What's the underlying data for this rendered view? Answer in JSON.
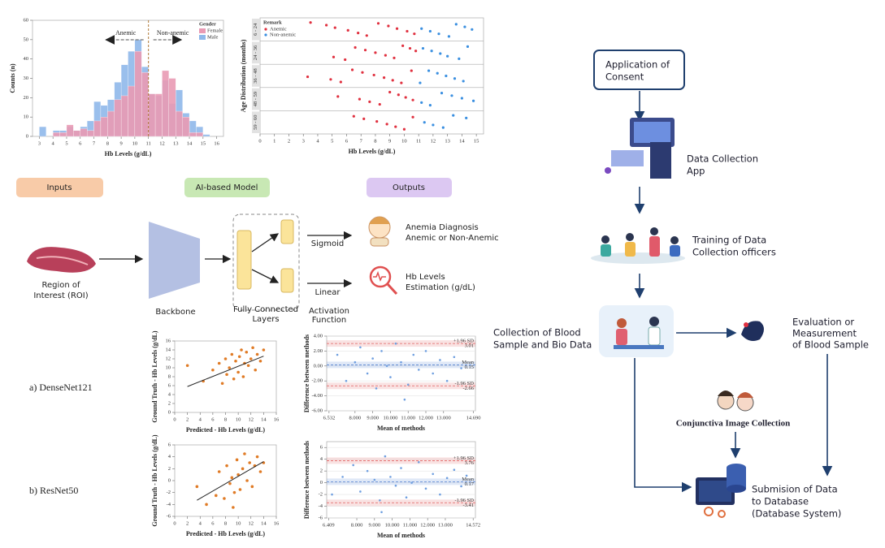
{
  "chart_data": [
    {
      "type": "histogram",
      "x_label": "Hb Levels (g/dL)",
      "y_label": "Counts (n)",
      "bins": [
        3,
        3.5,
        4,
        4.5,
        5,
        5.5,
        6,
        6.5,
        7,
        7.5,
        8,
        8.5,
        9,
        9.5,
        10,
        10.5,
        11,
        11.5,
        12,
        12.5,
        13,
        13.5,
        14,
        14.5,
        15,
        15.5
      ],
      "series": [
        {
          "name": "Male",
          "color": "#8fb8ea",
          "values": [
            5,
            0,
            3,
            3,
            5,
            3,
            5,
            8,
            18,
            16,
            19,
            28,
            37,
            44,
            50,
            36,
            22,
            21,
            29,
            17,
            24,
            12,
            8,
            5,
            1
          ]
        },
        {
          "name": "Female",
          "color": "#e99ab4",
          "values": [
            0,
            0,
            2,
            2,
            6,
            3,
            4,
            3,
            8,
            10,
            13,
            19,
            21,
            26,
            44,
            33,
            22,
            22,
            34,
            30,
            13,
            10,
            2,
            2,
            0
          ]
        }
      ],
      "legend_title": "Gender",
      "threshold": 11,
      "annotations": [
        "Anemic",
        "Non-anemic"
      ],
      "xlim": [
        2.5,
        16.5
      ],
      "xticks": [
        3,
        4,
        5,
        6,
        7,
        8,
        9,
        10,
        11,
        12,
        13,
        14,
        15,
        16
      ],
      "ylim": [
        0,
        60
      ],
      "yticks": [
        0,
        10,
        20,
        30,
        40,
        50,
        60
      ]
    },
    {
      "type": "strip",
      "x_label": "Hb Levels (g/dL)",
      "y_label": "Age Distribution (months)",
      "legend_title": "Remark",
      "categories": [
        "6 - 24",
        "24 - 36",
        "36 - 48",
        "48 - 59",
        "59 - 60"
      ],
      "series": [
        {
          "name": "Anemic",
          "color": "#e0303f",
          "values": [
            [
              3.5,
              4.6,
              5.2,
              6.1,
              6.8,
              7.4,
              8.2,
              8.9,
              9.5,
              10.2,
              10.7
            ],
            [
              5.1,
              5.9,
              6.6,
              7.3,
              8.0,
              8.7,
              9.3,
              9.9,
              10.4,
              10.8
            ],
            [
              3.3,
              4.9,
              5.6,
              6.4,
              7.1,
              7.9,
              8.6,
              9.2,
              9.8,
              10.5
            ],
            [
              5.4,
              6.9,
              7.6,
              8.3,
              9.0,
              9.6,
              10.1,
              10.6
            ],
            [
              6.5,
              7.2,
              8.1,
              8.8,
              9.4,
              10.0,
              10.6
            ]
          ]
        },
        {
          "name": "Non-anemic",
          "color": "#3a8fe0",
          "values": [
            [
              11.2,
              11.8,
              12.4,
              13.1,
              13.6,
              14.2,
              14.7
            ],
            [
              11.3,
              11.9,
              12.5,
              13.0,
              13.8,
              14.4
            ],
            [
              11.1,
              11.7,
              12.3,
              12.9,
              13.5,
              14.1
            ],
            [
              11.2,
              11.8,
              12.6,
              13.3,
              14.0,
              14.8
            ],
            [
              11.4,
              12.0,
              12.7,
              13.4,
              14.3
            ]
          ]
        }
      ],
      "xlim": [
        0,
        15.5
      ],
      "xticks": [
        0,
        1,
        2,
        3,
        4,
        5,
        6,
        7,
        8,
        9,
        10,
        11,
        12,
        13,
        14,
        15
      ]
    },
    {
      "type": "scatter",
      "x_label": "Predicted - Hb Levels (g/dL)",
      "y_label": "Ground Truth - Hb Levels (g/dL)",
      "color": "#e07b26",
      "x": [
        2.0,
        4.5,
        6.0,
        7.0,
        7.5,
        8.0,
        8.2,
        8.6,
        9.0,
        9.3,
        9.6,
        10.0,
        10.2,
        10.5,
        10.8,
        11.0,
        11.3,
        11.6,
        12.0,
        12.3,
        12.7,
        13.0,
        13.5,
        14.0
      ],
      "y": [
        10.5,
        7.0,
        9.5,
        11.0,
        6.5,
        12.0,
        8.5,
        10.0,
        13.0,
        7.5,
        11.5,
        9.0,
        12.5,
        14.0,
        8.0,
        11.0,
        13.5,
        10.5,
        12.0,
        14.5,
        9.5,
        13.0,
        11.5,
        14.0
      ],
      "fit": {
        "x": [
          2,
          14
        ],
        "y": [
          5.8,
          12.6
        ]
      },
      "xlim": [
        0,
        16
      ],
      "xticks": [
        0,
        2,
        4,
        6,
        8,
        10,
        12,
        14,
        16
      ],
      "ylim": [
        0,
        16
      ],
      "yticks": [
        0,
        2,
        4,
        6,
        8,
        10,
        12,
        14,
        16
      ]
    },
    {
      "type": "bland_altman",
      "x_label": "Mean of methods",
      "y_label": "Difference between methods",
      "color": "#6f9fe0",
      "grid": true,
      "x": [
        7.0,
        7.5,
        8.0,
        8.3,
        8.7,
        9.0,
        9.2,
        9.5,
        9.8,
        10.0,
        10.3,
        10.6,
        11.0,
        11.3,
        11.6,
        12.0,
        12.4,
        12.8,
        13.2,
        13.6,
        14.0,
        10.8
      ],
      "y": [
        1.5,
        -2.0,
        0.5,
        2.5,
        -1.0,
        1.0,
        -3.0,
        2.0,
        0.0,
        -1.5,
        3.0,
        0.5,
        -2.5,
        1.5,
        -0.5,
        2.0,
        -1.0,
        0.8,
        -2.0,
        1.2,
        -0.3,
        -4.5
      ],
      "lines": [
        {
          "label": "+1.96 SD",
          "value": 3.01,
          "color": "#e06060"
        },
        {
          "label": "Mean",
          "value": 0.15,
          "color": "#5080d0"
        },
        {
          "label": "-1.96 SD",
          "value": -2.66,
          "color": "#e06060"
        }
      ],
      "xlim": [
        6.4,
        14.8
      ],
      "xticks": [
        {
          "value": 6.532,
          "label": "6.532"
        },
        {
          "value": 8,
          "label": "8.000"
        },
        {
          "value": 9,
          "label": "9.000"
        },
        {
          "value": 10,
          "label": "10.000"
        },
        {
          "value": 11,
          "label": "11.000"
        },
        {
          "value": 12,
          "label": "12.000"
        },
        {
          "value": 13,
          "label": "13.000"
        },
        {
          "value": 14.69,
          "label": "14.690"
        }
      ],
      "ylim": [
        -6,
        4
      ],
      "yticks": [
        {
          "value": 4,
          "label": "4.00"
        },
        {
          "value": 2,
          "label": "2.00"
        },
        {
          "value": 0,
          "label": "0.00"
        },
        {
          "value": -2,
          "label": "-2.00"
        },
        {
          "value": -4,
          "label": "-4.00"
        },
        {
          "value": -6,
          "label": "-6.00"
        }
      ]
    },
    {
      "type": "scatter",
      "x_label": "Predicted - Hb Levels (g/dL)",
      "y_label": "Ground Truth - Hb Levels (g/dL)",
      "color": "#e07b26",
      "x": [
        3.5,
        5.0,
        6.5,
        7.0,
        7.8,
        8.2,
        8.7,
        9.0,
        9.4,
        9.8,
        10.0,
        10.3,
        10.7,
        11.0,
        11.4,
        11.8,
        12.2,
        12.6,
        13.0,
        13.5,
        14.0,
        9.2
      ],
      "y": [
        -1.0,
        -4.0,
        -2.5,
        1.5,
        -3.0,
        2.5,
        -0.5,
        0.5,
        -2.0,
        3.5,
        1.0,
        -1.5,
        2.0,
        4.5,
        0.0,
        3.0,
        -1.0,
        2.5,
        4.0,
        1.5,
        3.0,
        -4.5
      ],
      "fit": {
        "x": [
          3.5,
          14
        ],
        "y": [
          -3.3,
          3.2
        ]
      },
      "xlim": [
        0,
        16
      ],
      "xticks": [
        0,
        2,
        4,
        6,
        8,
        10,
        12,
        14,
        16
      ],
      "ylim": [
        -6,
        6
      ],
      "yticks": [
        -6,
        -4,
        -2,
        0,
        2,
        4,
        6
      ]
    },
    {
      "type": "bland_altman",
      "x_label": "Mean of methods",
      "y_label": "Difference between methods",
      "color": "#6f9fe0",
      "grid": true,
      "x": [
        6.6,
        7.2,
        7.8,
        8.2,
        8.6,
        9.0,
        9.3,
        9.6,
        9.9,
        10.2,
        10.5,
        10.8,
        11.1,
        11.5,
        11.9,
        12.3,
        12.7,
        13.1,
        13.5,
        13.9,
        14.2,
        9.4
      ],
      "y": [
        -2.0,
        1.0,
        3.0,
        -1.5,
        2.0,
        0.5,
        -3.0,
        4.5,
        1.0,
        -0.5,
        2.5,
        -2.5,
        0.0,
        3.5,
        -1.0,
        1.5,
        -2.0,
        0.8,
        2.2,
        -0.6,
        1.2,
        -5.0
      ],
      "lines": [
        {
          "label": "+1.96 SD",
          "value": 3.76,
          "color": "#e06060"
        },
        {
          "label": "Mean",
          "value": 0.17,
          "color": "#5080d0"
        },
        {
          "label": "-1.96 SD",
          "value": -3.41,
          "color": "#e06060"
        }
      ],
      "xlim": [
        6.3,
        14.7
      ],
      "xticks": [
        {
          "value": 6.409,
          "label": "6.409"
        },
        {
          "value": 8,
          "label": "8.000"
        },
        {
          "value": 9,
          "label": "9.000"
        },
        {
          "value": 10,
          "label": "10.000"
        },
        {
          "value": 11,
          "label": "11.000"
        },
        {
          "value": 12,
          "label": "12.000"
        },
        {
          "value": 13,
          "label": "13.000"
        },
        {
          "value": 14.572,
          "label": "14.572"
        }
      ],
      "ylim": [
        -6,
        7
      ],
      "yticks": [
        -6,
        -4,
        -2,
        0,
        2,
        4,
        6
      ]
    }
  ],
  "pipeline": {
    "headers": [
      "Inputs",
      "AI-based Model",
      "Outputs"
    ],
    "input_label": [
      "Region of",
      "Interest (ROI)"
    ],
    "backbone": "Backbone",
    "fc_label": [
      "Fully Connected",
      "Layers"
    ],
    "sigmoid": "Sigmoid",
    "linear": [
      "Linear",
      "Activation",
      "Function"
    ],
    "output_1": [
      "Anemia Diagnosis",
      "Anemic or Non-Anemic"
    ],
    "output_2": [
      "Hb Levels",
      "Estimation (g/dL)"
    ]
  },
  "model_labels": [
    "a) DenseNet121",
    "b) ResNet50"
  ],
  "flowchart": {
    "consent": [
      "Application of",
      "Consent"
    ],
    "app": [
      "Data Collection",
      "App"
    ],
    "training": [
      "Training of Data",
      "Collection officers"
    ],
    "collection": [
      "Collection of Blood",
      "Sample and Bio Data"
    ],
    "evaluation": [
      "Evaluation  or",
      "Measurement",
      "of Blood Sample"
    ],
    "conjunctiva": "Conjunctiva Image Collection",
    "submission": [
      "Submision of Data",
      "to Database",
      "(Database System)"
    ]
  }
}
